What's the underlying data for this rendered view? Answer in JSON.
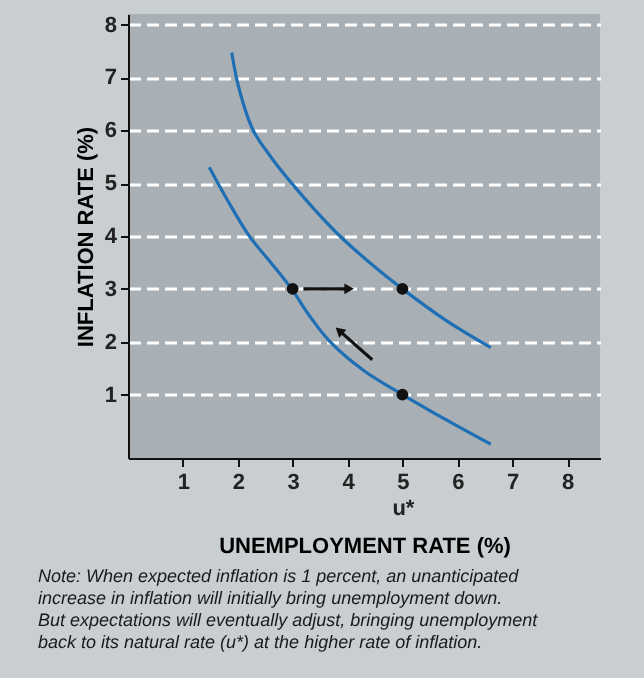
{
  "chart_data": {
    "type": "line",
    "xlabel": "UNEMPLOYMENT RATE (%)",
    "ylabel": "INFLATION RATE (%)",
    "xlim": [
      0,
      8.6
    ],
    "ylim": [
      -0.2,
      8.2
    ],
    "xticks": [
      1,
      2,
      3,
      4,
      {
        "value": 5,
        "label": "5\nu*"
      },
      6,
      7,
      8
    ],
    "yticks": [
      1,
      2,
      3,
      4,
      5,
      6,
      7,
      8
    ],
    "grid": "y",
    "line_style": "solid",
    "series": [
      {
        "color": "#1f6fb5",
        "x": [
          1.89,
          2.02,
          2.28,
          2.6,
          2.98,
          3.4,
          3.86,
          4.4,
          5.0,
          5.8,
          6.61
        ],
        "values": [
          7.47,
          6.8,
          6,
          5.5,
          5,
          4.5,
          4,
          3.5,
          3,
          2.4,
          1.89
        ]
      },
      {
        "color": "#1f6fb5",
        "x": [
          1.48,
          1.8,
          2.21,
          2.6,
          2.98,
          3.3,
          3.68,
          4.3,
          5.0,
          5.8,
          6.61
        ],
        "values": [
          5.3,
          4.7,
          4,
          3.5,
          3,
          2.5,
          2,
          1.45,
          1,
          0.52,
          0.06
        ]
      },
      {
        "color": "#111111",
        "x": [
          3.2,
          4.0
        ],
        "values": [
          3,
          3
        ]
      },
      {
        "color": "#111111",
        "x": [
          4.45,
          3.87
        ],
        "values": [
          1.66,
          2.19
        ]
      },
      {
        "type": "scatter",
        "marker": "circle",
        "color": "#111111",
        "x": [
          3,
          5,
          5
        ],
        "values": [
          3,
          3,
          1
        ]
      }
    ],
    "annotations": [
      "Note: When expected inflation is 1 percent, an unanticipated increase in inflation will initially bring unemployment down. But expectations will eventually adjust, bringing unemployment back to its natural rate (u*) at the higher rate of inflation."
    ]
  }
}
